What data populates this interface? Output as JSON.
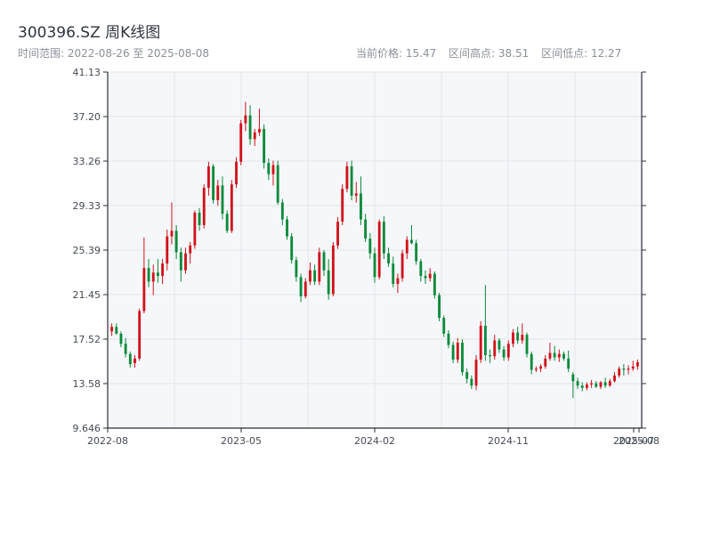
{
  "header": {
    "title": "300396.SZ 周K线图",
    "range_text": "时间范围: 2022-08-26 至 2025-08-08",
    "current_price_text": "当前价格: 15.47",
    "high_text": "区间高点: 38.51",
    "low_text": "区间低点: 12.27"
  },
  "colors": {
    "up": "#d0121b",
    "down": "#0a8a3a",
    "plot_bg": "#f5f7fa",
    "grid": "#e3e6eb",
    "axis": "#2b2f36"
  },
  "chart_data": {
    "type": "candlestick",
    "title": "300396.SZ 周K线图",
    "ylim": [
      9.646,
      41.13
    ],
    "y_ticks": [
      "9.646",
      "13.58",
      "17.52",
      "21.45",
      "25.39",
      "29.33",
      "33.26",
      "37.20",
      "41.13"
    ],
    "x_ticks": [
      "2022-08",
      "2023-05",
      "2024-02",
      "2024-11",
      "2025-07",
      "2025-08"
    ],
    "grid": true,
    "candles": [
      [
        18.2,
        18.9,
        17.8,
        18.6
      ],
      [
        18.6,
        18.9,
        17.9,
        18.0
      ],
      [
        18.0,
        18.2,
        16.8,
        17.1
      ],
      [
        17.1,
        17.6,
        15.9,
        16.2
      ],
      [
        16.2,
        16.4,
        15.0,
        15.3
      ],
      [
        15.4,
        16.1,
        15.0,
        15.8
      ],
      [
        15.8,
        20.2,
        15.6,
        20.0
      ],
      [
        20.0,
        26.5,
        19.8,
        23.8
      ],
      [
        23.8,
        24.6,
        22.1,
        22.6
      ],
      [
        22.6,
        24.1,
        21.4,
        23.4
      ],
      [
        23.4,
        24.6,
        22.5,
        23.1
      ],
      [
        23.1,
        24.6,
        22.4,
        24.2
      ],
      [
        24.2,
        27.2,
        23.6,
        26.6
      ],
      [
        26.6,
        29.6,
        25.9,
        27.1
      ],
      [
        27.1,
        27.6,
        24.6,
        25.2
      ],
      [
        25.2,
        25.6,
        22.6,
        23.6
      ],
      [
        23.6,
        25.6,
        23.3,
        25.1
      ],
      [
        25.1,
        26.1,
        24.2,
        25.8
      ],
      [
        25.8,
        28.9,
        25.5,
        28.7
      ],
      [
        28.7,
        29.1,
        27.1,
        27.6
      ],
      [
        27.6,
        31.2,
        27.3,
        30.9
      ],
      [
        30.9,
        33.2,
        30.2,
        32.8
      ],
      [
        32.8,
        33.0,
        29.5,
        29.8
      ],
      [
        29.8,
        31.6,
        29.3,
        31.1
      ],
      [
        31.1,
        31.9,
        28.1,
        28.6
      ],
      [
        28.6,
        28.9,
        26.9,
        27.1
      ],
      [
        27.1,
        31.6,
        26.9,
        31.2
      ],
      [
        31.2,
        33.6,
        30.9,
        33.2
      ],
      [
        33.2,
        36.9,
        32.9,
        36.6
      ],
      [
        36.6,
        38.5,
        35.9,
        37.3
      ],
      [
        37.3,
        38.2,
        34.7,
        35.2
      ],
      [
        35.2,
        36.1,
        34.6,
        35.8
      ],
      [
        35.8,
        37.9,
        35.5,
        36.1
      ],
      [
        36.1,
        36.5,
        32.6,
        33.1
      ],
      [
        33.1,
        33.5,
        31.6,
        32.1
      ],
      [
        32.1,
        33.3,
        31.1,
        32.9
      ],
      [
        32.9,
        33.3,
        29.4,
        29.6
      ],
      [
        29.6,
        29.9,
        27.6,
        28.1
      ],
      [
        28.1,
        28.4,
        26.3,
        26.6
      ],
      [
        26.6,
        26.9,
        24.2,
        24.5
      ],
      [
        24.5,
        24.8,
        22.6,
        23.0
      ],
      [
        23.0,
        23.3,
        20.8,
        21.3
      ],
      [
        21.3,
        22.9,
        21.1,
        22.6
      ],
      [
        22.6,
        24.3,
        22.3,
        23.6
      ],
      [
        23.6,
        24.1,
        22.3,
        22.6
      ],
      [
        22.6,
        25.6,
        22.3,
        25.2
      ],
      [
        25.2,
        25.4,
        23.1,
        23.6
      ],
      [
        23.6,
        24.6,
        21.0,
        21.5
      ],
      [
        21.5,
        26.1,
        21.3,
        25.8
      ],
      [
        25.8,
        28.3,
        25.5,
        27.9
      ],
      [
        27.9,
        31.2,
        27.6,
        30.8
      ],
      [
        30.8,
        33.2,
        30.5,
        32.8
      ],
      [
        32.8,
        33.3,
        29.8,
        30.2
      ],
      [
        30.2,
        31.4,
        29.6,
        30.4
      ],
      [
        30.4,
        31.9,
        27.6,
        28.1
      ],
      [
        28.1,
        28.6,
        26.1,
        26.4
      ],
      [
        26.4,
        26.9,
        24.6,
        25.1
      ],
      [
        25.1,
        25.6,
        22.5,
        23.0
      ],
      [
        23.0,
        28.1,
        22.8,
        27.9
      ],
      [
        27.9,
        28.4,
        24.6,
        25.1
      ],
      [
        25.1,
        25.6,
        23.9,
        24.2
      ],
      [
        24.2,
        24.8,
        22.1,
        22.4
      ],
      [
        22.4,
        23.3,
        21.6,
        22.9
      ],
      [
        22.9,
        25.4,
        22.6,
        25.1
      ],
      [
        25.1,
        26.6,
        24.6,
        26.3
      ],
      [
        26.3,
        27.6,
        25.9,
        26.0
      ],
      [
        26.0,
        26.3,
        24.1,
        24.4
      ],
      [
        24.4,
        24.6,
        22.6,
        23.1
      ],
      [
        23.1,
        23.6,
        22.4,
        22.9
      ],
      [
        22.9,
        23.8,
        22.6,
        23.3
      ],
      [
        23.3,
        23.5,
        21.1,
        21.4
      ],
      [
        21.4,
        21.6,
        19.1,
        19.4
      ],
      [
        19.4,
        19.6,
        17.7,
        18.0
      ],
      [
        18.0,
        18.3,
        16.7,
        17.0
      ],
      [
        17.0,
        17.3,
        15.4,
        15.7
      ],
      [
        15.7,
        17.6,
        15.4,
        17.2
      ],
      [
        17.2,
        17.5,
        14.3,
        14.6
      ],
      [
        14.6,
        14.9,
        13.6,
        14.0
      ],
      [
        14.0,
        14.3,
        13.1,
        13.4
      ],
      [
        13.4,
        16.1,
        13.0,
        15.7
      ],
      [
        15.7,
        19.1,
        15.4,
        18.7
      ],
      [
        18.7,
        22.3,
        15.6,
        16.1
      ],
      [
        16.1,
        16.6,
        15.4,
        16.0
      ],
      [
        16.0,
        17.9,
        15.7,
        17.4
      ],
      [
        17.4,
        17.6,
        16.3,
        16.6
      ],
      [
        16.6,
        16.9,
        15.6,
        15.9
      ],
      [
        15.9,
        17.4,
        15.6,
        17.1
      ],
      [
        17.1,
        18.4,
        16.8,
        18.1
      ],
      [
        18.1,
        18.6,
        17.1,
        17.4
      ],
      [
        17.4,
        18.9,
        17.1,
        17.9
      ],
      [
        17.9,
        18.1,
        15.9,
        16.2
      ],
      [
        16.2,
        16.4,
        14.4,
        14.8
      ],
      [
        14.8,
        15.1,
        14.6,
        14.9
      ],
      [
        14.9,
        15.3,
        14.6,
        15.1
      ],
      [
        15.1,
        16.1,
        14.9,
        15.8
      ],
      [
        15.8,
        17.2,
        15.6,
        16.3
      ],
      [
        16.3,
        16.9,
        15.6,
        15.9
      ],
      [
        15.9,
        16.6,
        15.5,
        16.2
      ],
      [
        16.2,
        16.4,
        15.6,
        15.8
      ],
      [
        15.8,
        16.5,
        14.6,
        14.9
      ],
      [
        14.4,
        14.6,
        12.3,
        13.8
      ],
      [
        13.8,
        14.1,
        13.1,
        13.4
      ],
      [
        13.4,
        13.7,
        12.9,
        13.2
      ],
      [
        13.2,
        13.7,
        13.0,
        13.5
      ],
      [
        13.5,
        13.9,
        13.2,
        13.6
      ],
      [
        13.6,
        13.8,
        13.2,
        13.3
      ],
      [
        13.3,
        13.8,
        13.1,
        13.7
      ],
      [
        13.7,
        14.1,
        13.2,
        13.4
      ],
      [
        13.4,
        14.0,
        13.3,
        13.8
      ],
      [
        13.8,
        14.6,
        13.7,
        14.3
      ],
      [
        14.3,
        15.1,
        14.1,
        14.9
      ],
      [
        14.9,
        15.3,
        14.3,
        14.8
      ],
      [
        14.8,
        15.2,
        14.4,
        14.9
      ],
      [
        14.9,
        15.6,
        14.7,
        15.1
      ],
      [
        15.1,
        15.7,
        14.8,
        15.47
      ]
    ]
  }
}
